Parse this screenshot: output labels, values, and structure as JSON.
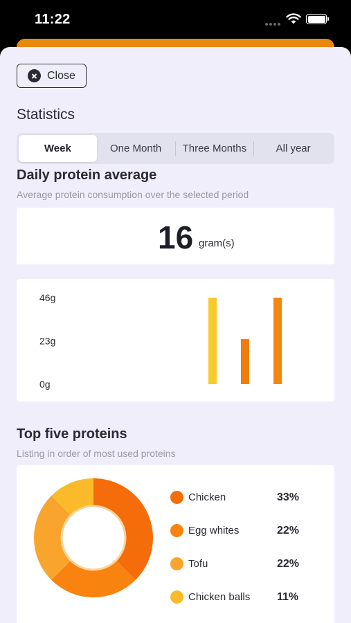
{
  "status_bar": {
    "time": "11:22"
  },
  "close_button": {
    "label": "Close"
  },
  "statistics_title": "Statistics",
  "period_tabs": [
    {
      "label": "Week",
      "active": true
    },
    {
      "label": "One Month",
      "active": false
    },
    {
      "label": "Three Months",
      "active": false
    },
    {
      "label": "All year",
      "active": false
    }
  ],
  "daily_average": {
    "title": "Daily protein average",
    "subtitle": "Average protein consumption over the selected period",
    "value": "16",
    "unit": "gram(s)"
  },
  "chart_data": [
    {
      "type": "bar",
      "categories": [
        "",
        "",
        ""
      ],
      "values": [
        46,
        24,
        46
      ],
      "colors": [
        "#f9cb2a",
        "#f27c0a",
        "#f4870b"
      ],
      "ytick_labels": [
        "0g",
        "23g",
        "46g"
      ],
      "yticks": [
        0,
        23,
        46
      ],
      "ylim": [
        0,
        46
      ],
      "title": "",
      "xlabel": "",
      "ylabel": "",
      "grid": false
    },
    {
      "type": "pie",
      "donut": true,
      "title": "Top five proteins",
      "subtitle": "Listing in order of most used proteins",
      "slices": [
        {
          "label": "Chicken",
          "value": 33,
          "display": "33%",
          "color": "#f56d0a"
        },
        {
          "label": "Egg whites",
          "value": 22,
          "display": "22%",
          "color": "#f9830f"
        },
        {
          "label": "Tofu",
          "value": 22,
          "display": "22%",
          "color": "#f9a42c"
        },
        {
          "label": "Chicken balls",
          "value": 11,
          "display": "11%",
          "color": "#fbba2a"
        }
      ],
      "legend": "right"
    }
  ]
}
